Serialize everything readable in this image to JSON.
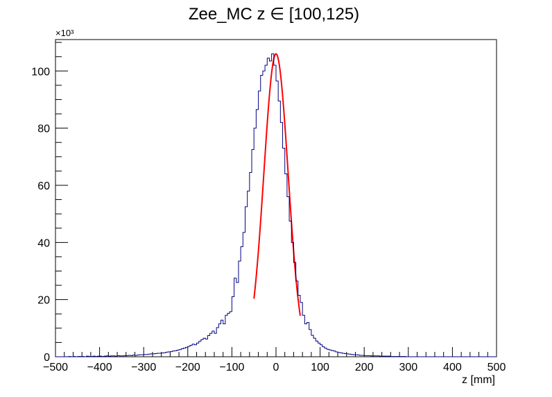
{
  "chart_data": {
    "type": "histogram",
    "title": "Zee_MC z ∈ [100,125)",
    "xlabel": "z [mm]",
    "ylabel": "",
    "y_multiplier_label": "×10³",
    "xlim": [
      -500,
      500
    ],
    "ylim": [
      0,
      111
    ],
    "x_ticks": [
      -500,
      -400,
      -300,
      -200,
      -100,
      0,
      100,
      200,
      300,
      400,
      500
    ],
    "x_tick_labels": [
      "−500",
      "−400",
      "−300",
      "−200",
      "−100",
      "0",
      "100",
      "200",
      "300",
      "400",
      "500"
    ],
    "y_ticks": [
      0,
      20,
      40,
      60,
      80,
      100
    ],
    "y_tick_labels": [
      "0",
      "20",
      "40",
      "60",
      "80",
      "100"
    ],
    "grid": false,
    "legend": "none",
    "bin_width": 5,
    "series": [
      {
        "role": "histogram",
        "color": "#000080",
        "bin_centers": [
          -497.5,
          -492.5,
          -487.5,
          -482.5,
          -477.5,
          -472.5,
          -467.5,
          -462.5,
          -457.5,
          -452.5,
          -447.5,
          -442.5,
          -437.5,
          -432.5,
          -427.5,
          -422.5,
          -417.5,
          -412.5,
          -407.5,
          -402.5,
          -397.5,
          -392.5,
          -387.5,
          -382.5,
          -377.5,
          -372.5,
          -367.5,
          -362.5,
          -357.5,
          -352.5,
          -347.5,
          -342.5,
          -337.5,
          -332.5,
          -327.5,
          -322.5,
          -317.5,
          -312.5,
          -307.5,
          -302.5,
          -297.5,
          -292.5,
          -287.5,
          -282.5,
          -277.5,
          -272.5,
          -267.5,
          -262.5,
          -257.5,
          -252.5,
          -247.5,
          -242.5,
          -237.5,
          -232.5,
          -227.5,
          -222.5,
          -217.5,
          -212.5,
          -207.5,
          -202.5,
          -197.5,
          -192.5,
          -187.5,
          -182.5,
          -177.5,
          -172.5,
          -167.5,
          -162.5,
          -157.5,
          -152.5,
          -147.5,
          -142.5,
          -137.5,
          -132.5,
          -127.5,
          -122.5,
          -117.5,
          -112.5,
          -107.5,
          -102.5,
          -97.5,
          -92.5,
          -87.5,
          -82.5,
          -77.5,
          -72.5,
          -67.5,
          -62.5,
          -57.5,
          -52.5,
          -47.5,
          -42.5,
          -37.5,
          -32.5,
          -27.5,
          -22.5,
          -17.5,
          -12.5,
          -7.5,
          -2.5,
          2.5,
          7.5,
          12.5,
          17.5,
          22.5,
          27.5,
          32.5,
          37.5,
          42.5,
          47.5,
          52.5,
          57.5,
          62.5,
          67.5,
          72.5,
          77.5,
          82.5,
          87.5,
          92.5,
          97.5,
          102.5,
          107.5,
          112.5,
          117.5,
          122.5,
          127.5,
          132.5,
          137.5,
          142.5,
          147.5,
          152.5,
          157.5,
          162.5,
          167.5,
          172.5,
          177.5,
          182.5,
          187.5,
          192.5,
          197.5,
          202.5,
          207.5,
          212.5,
          217.5,
          222.5,
          227.5,
          232.5,
          237.5,
          242.5,
          247.5,
          252.5,
          257.5,
          262.5,
          267.5,
          272.5,
          277.5,
          282.5,
          287.5,
          292.5,
          297.5,
          302.5,
          307.5,
          312.5,
          317.5,
          322.5,
          327.5,
          332.5,
          337.5,
          342.5,
          347.5,
          352.5,
          357.5,
          362.5,
          367.5,
          372.5,
          377.5,
          382.5,
          387.5,
          392.5,
          397.5,
          402.5,
          407.5,
          412.5,
          417.5,
          422.5,
          427.5,
          432.5,
          437.5,
          442.5,
          447.5,
          452.5,
          457.5,
          462.5,
          467.5,
          472.5,
          477.5,
          482.5,
          487.5,
          492.5,
          497.5
        ],
        "values_thousands": [
          0,
          0,
          0,
          0,
          0,
          0,
          0.1,
          0,
          0.1,
          0,
          0.1,
          0.1,
          0.1,
          0,
          0.2,
          0.1,
          0.1,
          0.2,
          0.1,
          0.2,
          0.2,
          0.1,
          0.2,
          0.3,
          0.2,
          0.3,
          0.3,
          0.2,
          0.4,
          0.3,
          0.3,
          0.4,
          0.4,
          0.5,
          0.4,
          0.6,
          0.5,
          0.6,
          0.7,
          0.7,
          0.8,
          0.8,
          0.9,
          1.0,
          1.0,
          1.1,
          1.2,
          1.2,
          1.3,
          1.4,
          1.6,
          1.7,
          1.8,
          2.0,
          2.1,
          2.3,
          2.5,
          2.8,
          3.0,
          3.3,
          3.6,
          4.0,
          4.4,
          4.2,
          4.8,
          5.4,
          6.0,
          6.5,
          6.2,
          7.4,
          8.2,
          9.0,
          8.2,
          10.2,
          11.5,
          12.8,
          11.5,
          14.5,
          15.2,
          15.8,
          21.0,
          27.5,
          26.0,
          33.5,
          38.5,
          43.5,
          52.5,
          58.0,
          64.5,
          72.5,
          80.0,
          86.5,
          93.0,
          98.5,
          100.0,
          102.0,
          104.5,
          103.5,
          106.0,
          102.0,
          96.5,
          89.5,
          82.0,
          73.0,
          64.0,
          56.0,
          47.5,
          40.0,
          33.0,
          26.5,
          21.5,
          19.0,
          14.5,
          11.5,
          12.0,
          9.5,
          7.5,
          6.5,
          5.5,
          4.8,
          4.2,
          3.5,
          3.0,
          2.6,
          2.4,
          2.2,
          2.0,
          1.7,
          1.5,
          1.4,
          1.2,
          1.1,
          1.0,
          0.9,
          0.8,
          0.7,
          0.7,
          0.6,
          0.5,
          0.5,
          0.4,
          0.4,
          0.4,
          0.3,
          0.3,
          0.3,
          0.3,
          0.2,
          0.2,
          0.2,
          0.2,
          0.2,
          0.1,
          0.1,
          0.1,
          0.1,
          0.1,
          0.1,
          0.1,
          0,
          0,
          0,
          0,
          0,
          0,
          0,
          0,
          0,
          0,
          0,
          0,
          0,
          0,
          0,
          0,
          0,
          0,
          0,
          0,
          0,
          0,
          0,
          0,
          0,
          0,
          0,
          0,
          0,
          0,
          0,
          0,
          0,
          0,
          0,
          0,
          0,
          0,
          0,
          0,
          0,
          0,
          0,
          0,
          0,
          0,
          0,
          0,
          0,
          0,
          0,
          0
        ]
      },
      {
        "role": "fit",
        "color": "#ff0000",
        "function": "gaussian",
        "amplitude_thousands": 106,
        "mean": 0,
        "sigma": 27.5,
        "range": [
          -50,
          55
        ]
      }
    ]
  }
}
